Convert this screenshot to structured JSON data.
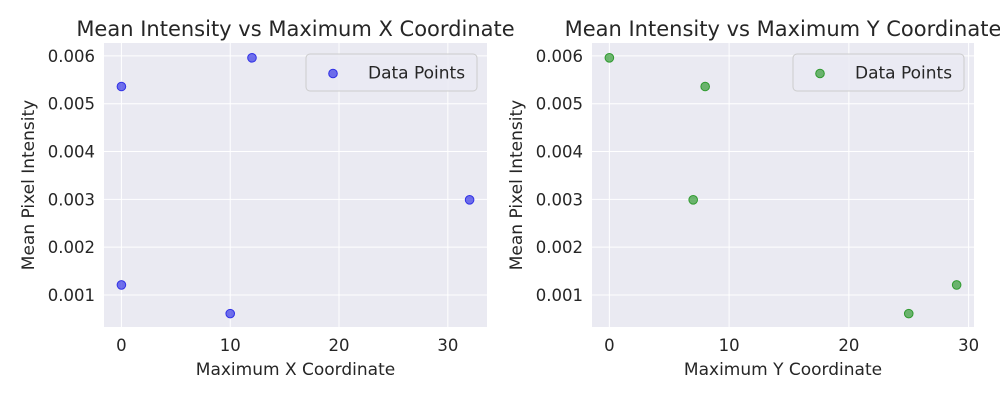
{
  "chart_data": [
    {
      "type": "scatter",
      "title": "Mean Intensity vs Maximum X Coordinate",
      "xlabel": "Maximum X Coordinate",
      "ylabel": "Mean Pixel Intensity",
      "xlim": [
        -1.6,
        33.6
      ],
      "ylim": [
        0.00033,
        0.00627
      ],
      "xticks": [
        0,
        10,
        20,
        30
      ],
      "xtick_labels": [
        "0",
        "10",
        "20",
        "30"
      ],
      "yticks": [
        0.001,
        0.002,
        0.003,
        0.004,
        0.005,
        0.006
      ],
      "ytick_labels": [
        "0.001",
        "0.002",
        "0.003",
        "0.004",
        "0.005",
        "0.006"
      ],
      "grid": true,
      "legend_position": "top-right",
      "color": "#3030e6",
      "series": [
        {
          "name": "Data Points",
          "points": [
            {
              "x": 0,
              "y": 0.00536
            },
            {
              "x": 0,
              "y": 0.00121
            },
            {
              "x": 10,
              "y": 0.00061
            },
            {
              "x": 12,
              "y": 0.00596
            },
            {
              "x": 32,
              "y": 0.00299
            }
          ]
        }
      ]
    },
    {
      "type": "scatter",
      "title": "Mean Intensity vs Maximum Y Coordinate",
      "xlabel": "Maximum Y Coordinate",
      "ylabel": "Mean Pixel Intensity",
      "xlim": [
        -1.45,
        30.45
      ],
      "ylim": [
        0.00033,
        0.00627
      ],
      "xticks": [
        0,
        10,
        20,
        30
      ],
      "xtick_labels": [
        "0",
        "10",
        "20",
        "30"
      ],
      "yticks": [
        0.001,
        0.002,
        0.003,
        0.004,
        0.005,
        0.006
      ],
      "ytick_labels": [
        "0.001",
        "0.002",
        "0.003",
        "0.004",
        "0.005",
        "0.006"
      ],
      "grid": true,
      "legend_position": "top-right",
      "color": "#2e9a2e",
      "series": [
        {
          "name": "Data Points",
          "points": [
            {
              "x": 0,
              "y": 0.00596
            },
            {
              "x": 8,
              "y": 0.00536
            },
            {
              "x": 7,
              "y": 0.00299
            },
            {
              "x": 25,
              "y": 0.00061
            },
            {
              "x": 29,
              "y": 0.00121
            }
          ]
        }
      ]
    }
  ]
}
